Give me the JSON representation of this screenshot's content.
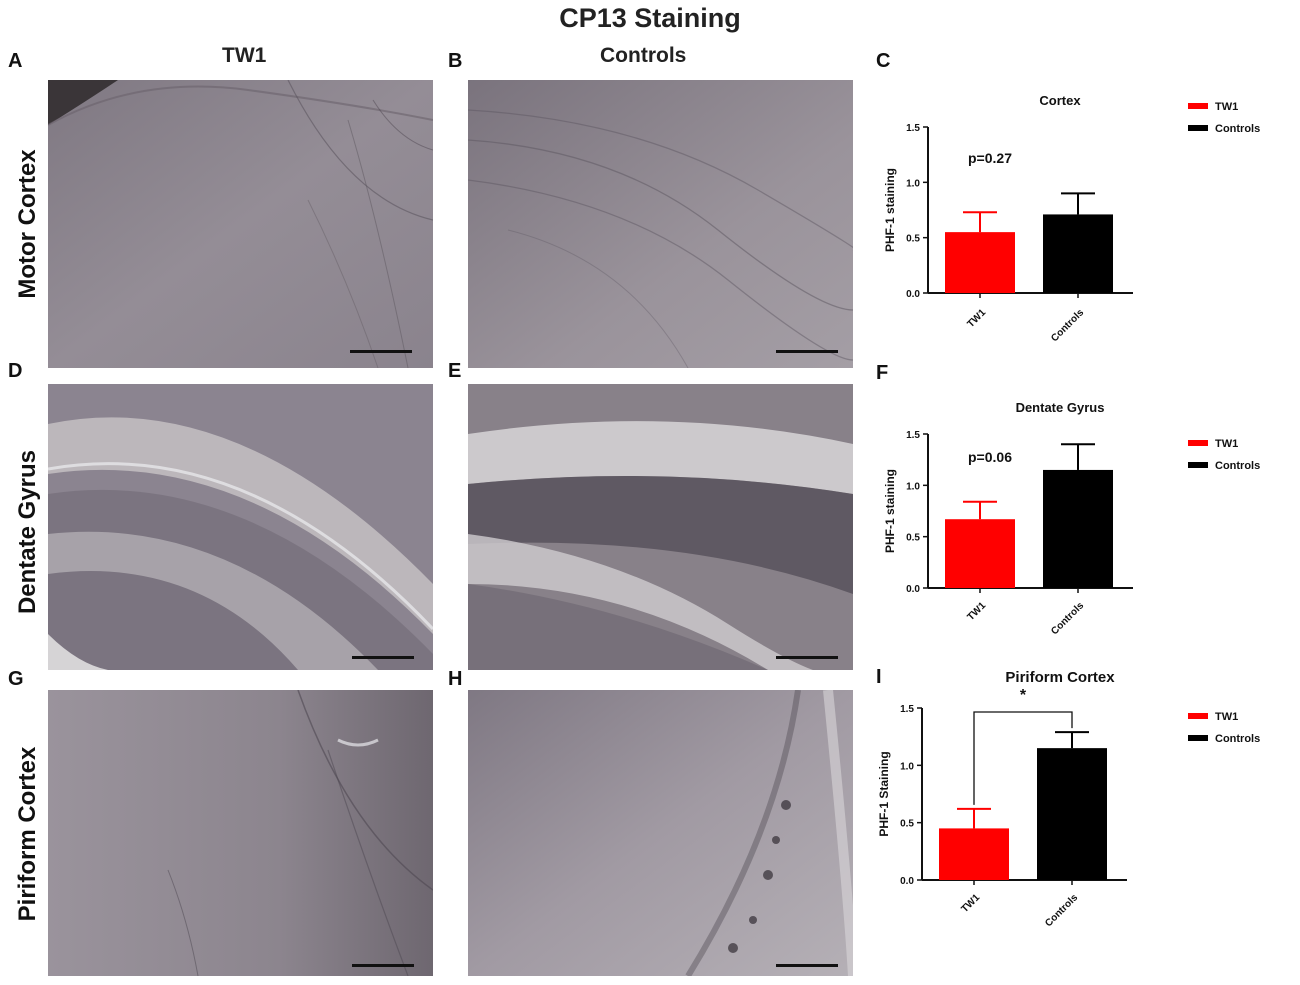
{
  "figure": {
    "title": "CP13 Staining",
    "columns": [
      "TW1",
      "Controls"
    ],
    "rows": [
      "Motor Cortex",
      "Dentate Gyrus",
      "Piriform Cortex"
    ],
    "panel_letters": [
      "A",
      "B",
      "C",
      "D",
      "E",
      "F",
      "G",
      "H",
      "I"
    ]
  },
  "colors": {
    "tw1": "#ff0000",
    "controls": "#000000",
    "tissue": "#8e8791"
  },
  "chart_data": [
    {
      "type": "bar",
      "title": "Cortex",
      "categories": [
        "TW1",
        "Controls"
      ],
      "values": [
        0.55,
        0.71
      ],
      "errors": [
        0.18,
        0.19
      ],
      "ylabel": "PHF-1 staining",
      "xlabel": "",
      "ylim": [
        0,
        1.5
      ],
      "yticks": [
        "0.0",
        "0.5",
        "1.0",
        "1.5"
      ],
      "annotation": "p=0.27",
      "legend": [
        {
          "name": "TW1",
          "color": "#ff0000"
        },
        {
          "name": "Controls",
          "color": "#000000"
        }
      ],
      "legend_position": "right",
      "grid": false
    },
    {
      "type": "bar",
      "title": "Dentate Gyrus",
      "categories": [
        "TW1",
        "Controls"
      ],
      "values": [
        0.67,
        1.15
      ],
      "errors": [
        0.17,
        0.25
      ],
      "ylabel": "PHF-1 staining",
      "xlabel": "",
      "ylim": [
        0,
        1.5
      ],
      "yticks": [
        "0.0",
        "0.5",
        "1.0",
        "1.5"
      ],
      "annotation": "p=0.06",
      "legend": [
        {
          "name": "TW1",
          "color": "#ff0000"
        },
        {
          "name": "Controls",
          "color": "#000000"
        }
      ],
      "legend_position": "right",
      "grid": false
    },
    {
      "type": "bar",
      "title": "Piriform Cortex",
      "categories": [
        "TW1",
        "Controls"
      ],
      "values": [
        0.45,
        1.15
      ],
      "errors": [
        0.17,
        0.14
      ],
      "ylabel": "PHF-1 Staining",
      "xlabel": "",
      "ylim": [
        0,
        1.5
      ],
      "yticks": [
        "0.0",
        "0.5",
        "1.0",
        "1.5"
      ],
      "annotation": "*",
      "significance_bracket": true,
      "legend": [
        {
          "name": "TW1",
          "color": "#ff0000"
        },
        {
          "name": "Controls",
          "color": "#000000"
        }
      ],
      "legend_position": "right",
      "grid": false
    }
  ]
}
